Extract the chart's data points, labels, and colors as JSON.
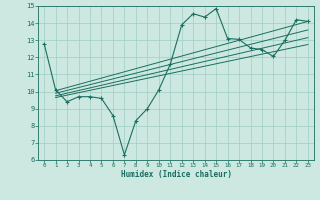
{
  "bg_color": "#cce8e0",
  "grid_color": "#9fcec4",
  "line_color": "#1a6e60",
  "xlabel": "Humidex (Indice chaleur)",
  "xlim": [
    -0.5,
    23.5
  ],
  "ylim": [
    6,
    15
  ],
  "yticks": [
    6,
    7,
    8,
    9,
    10,
    11,
    12,
    13,
    14,
    15
  ],
  "xticks": [
    0,
    1,
    2,
    3,
    4,
    5,
    6,
    7,
    8,
    9,
    10,
    11,
    12,
    13,
    14,
    15,
    16,
    17,
    18,
    19,
    20,
    21,
    22,
    23
  ],
  "main_line_x": [
    0,
    1,
    2,
    3,
    4,
    5,
    6,
    7,
    8,
    9,
    10,
    11,
    12,
    13,
    14,
    15,
    16,
    17,
    18,
    19,
    20,
    21,
    22,
    23
  ],
  "main_line_y": [
    12.8,
    10.1,
    9.4,
    9.7,
    9.7,
    9.6,
    8.6,
    6.3,
    8.3,
    9.0,
    10.1,
    11.6,
    13.9,
    14.55,
    14.35,
    14.85,
    13.1,
    13.05,
    12.55,
    12.45,
    12.05,
    13.0,
    14.2,
    14.1
  ],
  "reg_lines": [
    {
      "x": [
        1,
        23
      ],
      "y": [
        10.05,
        14.1
      ]
    },
    {
      "x": [
        1,
        23
      ],
      "y": [
        9.9,
        13.6
      ]
    },
    {
      "x": [
        1,
        23
      ],
      "y": [
        9.75,
        13.15
      ]
    },
    {
      "x": [
        1,
        23
      ],
      "y": [
        9.65,
        12.75
      ]
    }
  ],
  "figsize": [
    3.2,
    2.0
  ],
  "dpi": 100
}
